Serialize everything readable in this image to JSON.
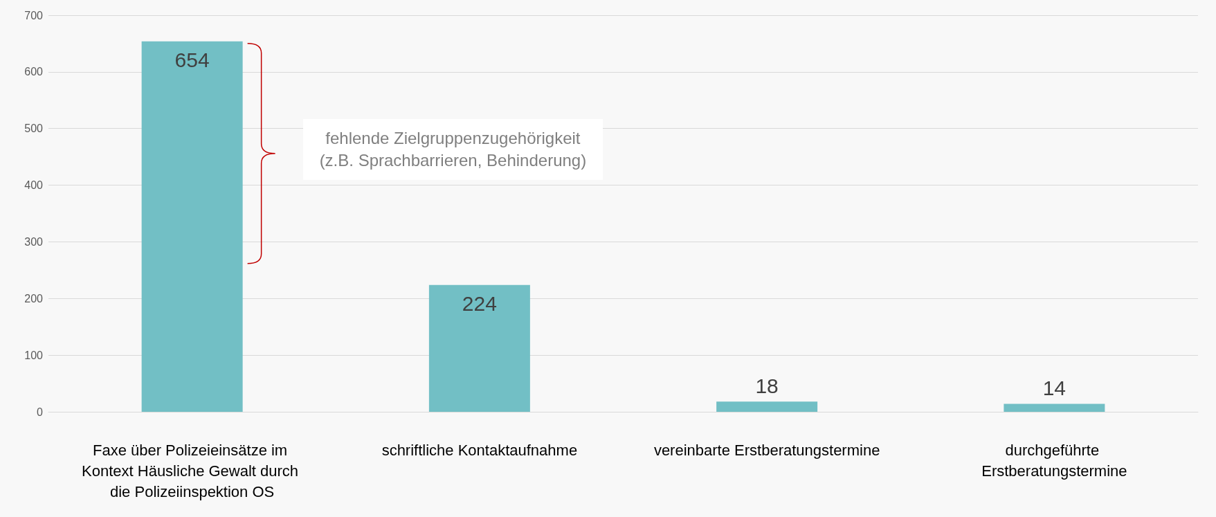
{
  "chart_data": {
    "type": "bar",
    "categories": [
      "Faxe über Polizeieinsätze im Kontext Häusliche Gewalt durch die Polizeiinspektion OS",
      "schriftliche Kontaktaufnahme",
      "vereinbarte Erstberatungstermine",
      "durchgeführte Erstberatungstermine"
    ],
    "values": [
      654,
      224,
      18,
      14
    ],
    "color": "#72bfc5",
    "ylim": [
      0,
      700
    ],
    "yticks": [
      0,
      100,
      200,
      300,
      400,
      500,
      600,
      700
    ],
    "grid": "y",
    "data_labels": true,
    "annotations": [
      "fehlende Zielgruppenzugehörigkeit\n(z.B. Sprachbarrieren, Behinderung)"
    ]
  }
}
